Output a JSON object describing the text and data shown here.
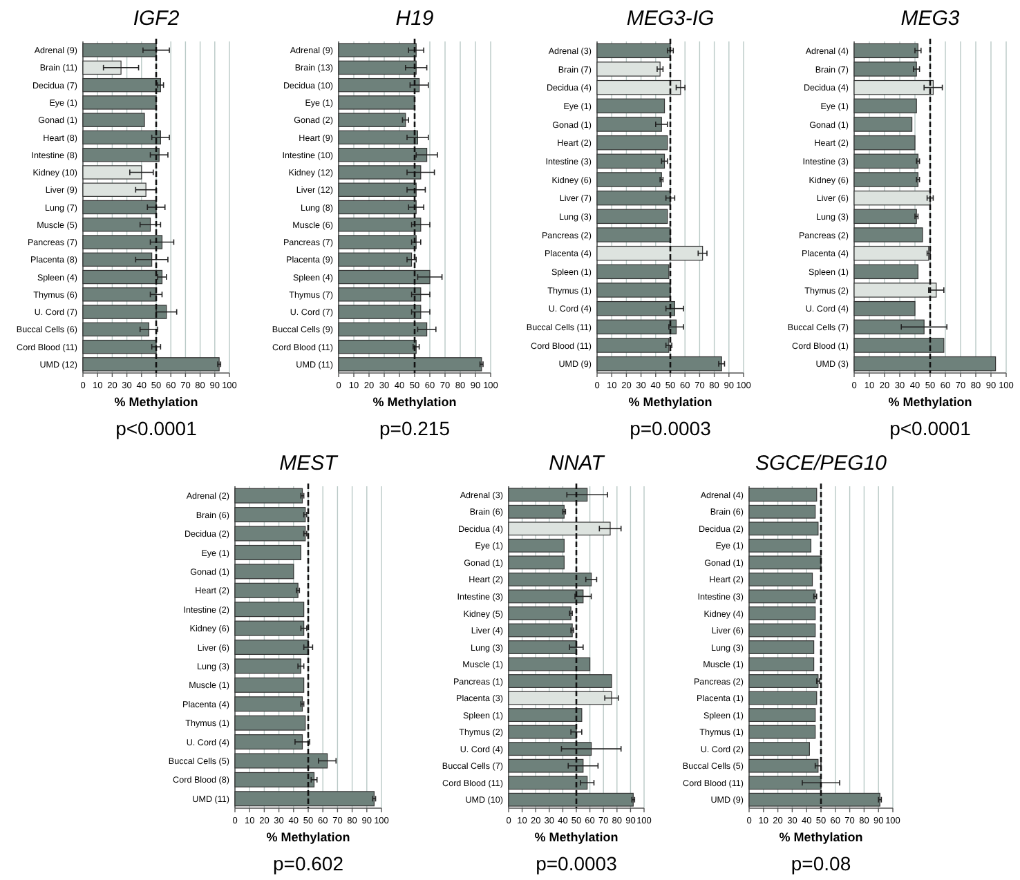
{
  "chart_data": [
    {
      "type": "bar",
      "orientation": "horizontal",
      "title": "IGF2",
      "xlabel": "% Methylation",
      "annotations": [
        "p<0.0001"
      ],
      "xlim": [
        0,
        100
      ],
      "xticks": [
        0,
        10,
        20,
        30,
        40,
        50,
        60,
        70,
        80,
        90,
        100
      ],
      "grid": "x",
      "ref_lines": [
        {
          "axis": "x",
          "value": 50,
          "line_style": "dashed",
          "color": "#111111"
        }
      ],
      "categories": [
        "Adrenal (9)",
        "Brain (11)",
        "Decidua (7)",
        "Eye (1)",
        "Gonad (1)",
        "Heart (8)",
        "Intestine (8)",
        "Kidney (10)",
        "Liver (9)",
        "Lung (7)",
        "Muscle (5)",
        "Pancreas (7)",
        "Placenta (8)",
        "Spleen (4)",
        "Thymus (6)",
        "U. Cord (7)",
        "Buccal Cells (6)",
        "Cord Blood (11)",
        "UMD (12)"
      ],
      "values": [
        50,
        26,
        53,
        50,
        42,
        53,
        52,
        40,
        43,
        50,
        46,
        54,
        47,
        54,
        50,
        57,
        45,
        50,
        93
      ],
      "errors": [
        9,
        12,
        2,
        null,
        null,
        6,
        6,
        8,
        7,
        6,
        7,
        8,
        11,
        3,
        4,
        7,
        6,
        3,
        1
      ],
      "colors": [
        "#6e817b",
        "#dde3df",
        "#6e817b",
        "#6e817b",
        "#6e817b",
        "#6e817b",
        "#6e817b",
        "#dde3df",
        "#dde3df",
        "#6e817b",
        "#6e817b",
        "#6e817b",
        "#6e817b",
        "#6e817b",
        "#6e817b",
        "#6e817b",
        "#6e817b",
        "#6e817b",
        "#6e817b"
      ]
    },
    {
      "type": "bar",
      "orientation": "horizontal",
      "title": "H19",
      "xlabel": "% Methylation",
      "annotations": [
        "p=0.215"
      ],
      "xlim": [
        0,
        100
      ],
      "xticks": [
        0,
        10,
        20,
        30,
        40,
        50,
        60,
        70,
        80,
        90,
        100
      ],
      "grid": "x",
      "ref_lines": [
        {
          "axis": "x",
          "value": 50,
          "line_style": "dashed",
          "color": "#111111"
        }
      ],
      "categories": [
        "Adrenal (9)",
        "Brain (13)",
        "Decidua (10)",
        "Eye (1)",
        "Gonad (2)",
        "Heart (9)",
        "Intestine (10)",
        "Kidney (12)",
        "Liver (12)",
        "Lung (8)",
        "Muscle (6)",
        "Pancreas (7)",
        "Placenta (9)",
        "Spleen (4)",
        "Thymus (7)",
        "U. Cord (7)",
        "Buccal Cells (9)",
        "Cord Blood (11)",
        "UMD (11)"
      ],
      "values": [
        51,
        51,
        53,
        50,
        44,
        52,
        58,
        54,
        51,
        51,
        54,
        51,
        48,
        60,
        54,
        54,
        58,
        51,
        94
      ],
      "errors": [
        5,
        7,
        6,
        null,
        2,
        7,
        7,
        9,
        6,
        5,
        6,
        3,
        3,
        8,
        6,
        6,
        6,
        2,
        1
      ],
      "colors": [
        "#6e817b",
        "#6e817b",
        "#6e817b",
        "#6e817b",
        "#6e817b",
        "#6e817b",
        "#6e817b",
        "#6e817b",
        "#6e817b",
        "#6e817b",
        "#6e817b",
        "#6e817b",
        "#6e817b",
        "#6e817b",
        "#6e817b",
        "#6e817b",
        "#6e817b",
        "#6e817b",
        "#6e817b"
      ]
    },
    {
      "type": "bar",
      "orientation": "horizontal",
      "title": "MEG3-IG",
      "xlabel": "% Methylation",
      "annotations": [
        "p=0.0003"
      ],
      "xlim": [
        0,
        100
      ],
      "xticks": [
        0,
        10,
        20,
        30,
        40,
        50,
        60,
        70,
        80,
        90,
        100
      ],
      "grid": "x",
      "ref_lines": [
        {
          "axis": "x",
          "value": 50,
          "line_style": "dashed",
          "color": "#111111"
        }
      ],
      "categories": [
        "Adrenal (3)",
        "Brain (7)",
        "Decidua (4)",
        "Eye (1)",
        "Gonad (1)",
        "Heart (2)",
        "Intestine (3)",
        "Kidney (6)",
        "Liver (7)",
        "Lung (3)",
        "Pancreas (2)",
        "Placenta (4)",
        "Spleen (1)",
        "Thymus (1)",
        "U. Cord (4)",
        "Buccal Cells (11)",
        "Cord Blood (11)",
        "UMD (9)"
      ],
      "values": [
        50,
        43,
        57,
        46,
        44,
        48,
        46,
        44,
        50,
        48,
        50,
        72,
        49,
        50,
        53,
        54,
        49,
        85
      ],
      "errors": [
        2,
        2,
        3,
        null,
        4,
        null,
        2,
        1,
        3,
        null,
        null,
        3,
        null,
        null,
        6,
        5,
        2,
        2
      ],
      "colors": [
        "#6e817b",
        "#dde3df",
        "#dde3df",
        "#6e817b",
        "#6e817b",
        "#6e817b",
        "#6e817b",
        "#6e817b",
        "#6e817b",
        "#6e817b",
        "#6e817b",
        "#dde3df",
        "#6e817b",
        "#6e817b",
        "#6e817b",
        "#6e817b",
        "#6e817b",
        "#6e817b"
      ]
    },
    {
      "type": "bar",
      "orientation": "horizontal",
      "title": "MEG3",
      "xlabel": "% Methylation",
      "annotations": [
        "p<0.0001"
      ],
      "xlim": [
        0,
        100
      ],
      "xticks": [
        0,
        10,
        20,
        30,
        40,
        50,
        60,
        70,
        80,
        90,
        100
      ],
      "grid": "x",
      "ref_lines": [
        {
          "axis": "x",
          "value": 50,
          "line_style": "dashed",
          "color": "#111111"
        }
      ],
      "categories": [
        "Adrenal (4)",
        "Brain (7)",
        "Decidua (4)",
        "Eye (1)",
        "Gonad (1)",
        "Heart (2)",
        "Intestine (3)",
        "Kidney (6)",
        "Liver (6)",
        "Lung (3)",
        "Pancreas (2)",
        "Placenta (4)",
        "Spleen (1)",
        "Thymus (2)",
        "U. Cord (4)",
        "Buccal Cells (7)",
        "Cord Blood (1)",
        "UMD (3)"
      ],
      "values": [
        42,
        41,
        52,
        41,
        38,
        40,
        42,
        42,
        50,
        41,
        45,
        49,
        42,
        54,
        40,
        46,
        59,
        93
      ],
      "errors": [
        2,
        2,
        6,
        null,
        null,
        null,
        1,
        1,
        2,
        1,
        null,
        1,
        null,
        5,
        null,
        15,
        null,
        null
      ],
      "colors": [
        "#6e817b",
        "#6e817b",
        "#dde3df",
        "#6e817b",
        "#6e817b",
        "#6e817b",
        "#6e817b",
        "#6e817b",
        "#dde3df",
        "#6e817b",
        "#6e817b",
        "#dde3df",
        "#6e817b",
        "#dde3df",
        "#6e817b",
        "#6e817b",
        "#6e817b",
        "#6e817b"
      ]
    },
    {
      "type": "bar",
      "orientation": "horizontal",
      "title": "MEST",
      "xlabel": "% Methylation",
      "annotations": [
        "p=0.602"
      ],
      "xlim": [
        0,
        100
      ],
      "xticks": [
        0,
        10,
        20,
        30,
        40,
        50,
        60,
        70,
        80,
        90,
        100
      ],
      "grid": "x",
      "ref_lines": [
        {
          "axis": "x",
          "value": 50,
          "line_style": "dashed",
          "color": "#111111"
        }
      ],
      "categories": [
        "Adrenal (2)",
        "Brain (6)",
        "Decidua (2)",
        "Eye (1)",
        "Gonad (1)",
        "Heart (2)",
        "Intestine (2)",
        "Kidney (6)",
        "Liver (6)",
        "Lung (3)",
        "Muscle (1)",
        "Placenta (4)",
        "Thymus (1)",
        "U. Cord (4)",
        "Buccal Cells (5)",
        "Cord Blood (8)",
        "UMD (11)"
      ],
      "values": [
        46,
        48,
        48,
        45,
        40,
        43,
        47,
        47,
        50,
        45,
        47,
        46,
        48,
        46,
        63,
        54,
        95
      ],
      "errors": [
        1,
        1,
        1,
        null,
        null,
        1,
        null,
        2,
        3,
        2,
        null,
        1,
        null,
        5,
        6,
        2,
        1
      ],
      "colors": [
        "#6e817b",
        "#6e817b",
        "#6e817b",
        "#6e817b",
        "#6e817b",
        "#6e817b",
        "#6e817b",
        "#6e817b",
        "#6e817b",
        "#6e817b",
        "#6e817b",
        "#6e817b",
        "#6e817b",
        "#6e817b",
        "#6e817b",
        "#6e817b",
        "#6e817b"
      ]
    },
    {
      "type": "bar",
      "orientation": "horizontal",
      "title": "NNAT",
      "xlabel": "% Methylation",
      "annotations": [
        "p=0.0003"
      ],
      "xlim": [
        0,
        100
      ],
      "xticks": [
        0,
        10,
        20,
        30,
        40,
        50,
        60,
        70,
        80,
        90,
        100
      ],
      "grid": "x",
      "ref_lines": [
        {
          "axis": "x",
          "value": 50,
          "line_style": "dashed",
          "color": "#111111"
        }
      ],
      "categories": [
        "Adrenal (3)",
        "Brain (6)",
        "Decidua (4)",
        "Eye (1)",
        "Gonad (1)",
        "Heart (2)",
        "Intestine (3)",
        "Kidney (5)",
        "Liver (4)",
        "Lung (3)",
        "Muscle (1)",
        "Pancreas (1)",
        "Placenta (3)",
        "Spleen (1)",
        "Thymus (2)",
        "U. Cord (4)",
        "Buccal Cells (7)",
        "Cord Blood (11)",
        "UMD (10)"
      ],
      "values": [
        58,
        41,
        75,
        41,
        41,
        61,
        55,
        46,
        47,
        50,
        60,
        76,
        76,
        54,
        50,
        61,
        55,
        58,
        92
      ],
      "errors": [
        15,
        1,
        8,
        null,
        null,
        4,
        6,
        1,
        1,
        5,
        null,
        null,
        5,
        null,
        4,
        22,
        11,
        5,
        1
      ],
      "colors": [
        "#6e817b",
        "#6e817b",
        "#dde3df",
        "#6e817b",
        "#6e817b",
        "#6e817b",
        "#6e817b",
        "#6e817b",
        "#6e817b",
        "#6e817b",
        "#6e817b",
        "#6e817b",
        "#dde3df",
        "#6e817b",
        "#6e817b",
        "#6e817b",
        "#6e817b",
        "#6e817b",
        "#6e817b"
      ]
    },
    {
      "type": "bar",
      "orientation": "horizontal",
      "title": "SGCE/PEG10",
      "xlabel": "% Methylation",
      "annotations": [
        "p=0.08"
      ],
      "xlim": [
        0,
        100
      ],
      "xticks": [
        0,
        10,
        20,
        30,
        40,
        50,
        60,
        70,
        80,
        90,
        100
      ],
      "grid": "x",
      "ref_lines": [
        {
          "axis": "x",
          "value": 50,
          "line_style": "dashed",
          "color": "#111111"
        }
      ],
      "categories": [
        "Adrenal (4)",
        "Brain (6)",
        "Decidua (2)",
        "Eye (1)",
        "Gonad (1)",
        "Heart (2)",
        "Intestine (3)",
        "Kidney (4)",
        "Liver (6)",
        "Lung (3)",
        "Muscle (1)",
        "Pancreas (2)",
        "Placenta (1)",
        "Spleen (1)",
        "Thymus (1)",
        "U. Cord (2)",
        "Buccal Cells (5)",
        "Cord Blood (11)",
        "UMD (9)"
      ],
      "values": [
        47,
        46,
        48,
        43,
        50,
        44,
        46,
        46,
        46,
        45,
        45,
        48,
        47,
        46,
        46,
        42,
        48,
        50,
        91
      ],
      "errors": [
        null,
        null,
        null,
        null,
        null,
        null,
        1,
        null,
        null,
        null,
        null,
        1,
        null,
        null,
        null,
        null,
        2,
        13,
        1
      ],
      "colors": [
        "#6e817b",
        "#6e817b",
        "#6e817b",
        "#6e817b",
        "#6e817b",
        "#6e817b",
        "#6e817b",
        "#6e817b",
        "#6e817b",
        "#6e817b",
        "#6e817b",
        "#6e817b",
        "#6e817b",
        "#6e817b",
        "#6e817b",
        "#6e817b",
        "#6e817b",
        "#6e817b",
        "#6e817b"
      ]
    }
  ]
}
